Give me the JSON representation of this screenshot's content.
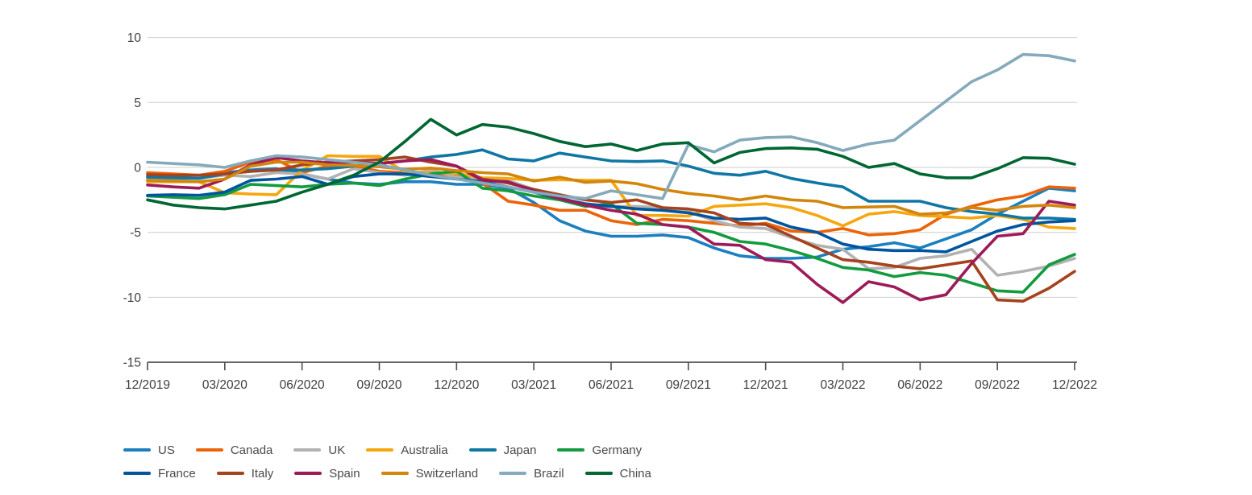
{
  "meta": {
    "background": "#ffffff",
    "grid_color": "#cfcfcf",
    "axis_color": "#4d4d4d",
    "text_color": "#3f3f3f"
  },
  "chart_data": {
    "type": "line",
    "title": "",
    "xlabel": "",
    "ylabel": "",
    "ylim": [
      -15,
      10
    ],
    "grid": "horizontal",
    "legend_position": "bottom-left",
    "y_tick_labels": [
      "10",
      "5",
      "0",
      "-5",
      "-10",
      "-15"
    ],
    "y_tick_values": [
      10,
      5,
      0,
      -5,
      -10,
      -15
    ],
    "x_tick_labels": [
      "12/2019",
      "03/2020",
      "06/2020",
      "09/2020",
      "12/2020",
      "03/2021",
      "06/2021",
      "09/2021",
      "12/2021",
      "03/2022",
      "06/2022",
      "09/2022",
      "12/2022"
    ],
    "x_months": [
      "12/2019",
      "01/2020",
      "02/2020",
      "03/2020",
      "04/2020",
      "05/2020",
      "06/2020",
      "07/2020",
      "08/2020",
      "09/2020",
      "10/2020",
      "11/2020",
      "12/2020",
      "01/2021",
      "02/2021",
      "03/2021",
      "04/2021",
      "05/2021",
      "06/2021",
      "07/2021",
      "08/2021",
      "09/2021",
      "10/2021",
      "11/2021",
      "12/2021",
      "01/2022",
      "02/2022",
      "03/2022",
      "04/2022",
      "05/2022",
      "06/2022",
      "07/2022",
      "08/2022",
      "09/2022",
      "10/2022",
      "11/2022",
      "12/2022"
    ],
    "series": [
      {
        "name": "US",
        "color": "#1b7fc0",
        "values": [
          -0.7,
          -0.7,
          -0.8,
          -0.4,
          -0.2,
          -0.1,
          -0.5,
          -0.9,
          -1.2,
          -1.3,
          -1.1,
          -1.1,
          -1.3,
          -1.3,
          -1.6,
          -2.7,
          -4.1,
          -4.9,
          -5.3,
          -5.3,
          -5.2,
          -5.4,
          -6.2,
          -6.8,
          -7.0,
          -7.0,
          -6.9,
          -6.3,
          -6.1,
          -5.8,
          -6.2,
          -5.5,
          -4.8,
          -3.6,
          -2.6,
          -1.6,
          -1.8
        ]
      },
      {
        "name": "Canada",
        "color": "#ec6408",
        "values": [
          -0.4,
          -0.5,
          -0.6,
          -0.3,
          0.4,
          0.6,
          -0.4,
          0.1,
          0.1,
          -0.3,
          -0.4,
          -0.7,
          -0.5,
          -1.2,
          -2.6,
          -2.9,
          -3.3,
          -3.3,
          -4.1,
          -4.4,
          -4.0,
          -4.1,
          -4.3,
          -4.5,
          -4.3,
          -4.9,
          -5.0,
          -4.7,
          -5.2,
          -5.1,
          -4.8,
          -3.6,
          -3.0,
          -2.5,
          -2.2,
          -1.5,
          -1.6
        ]
      },
      {
        "name": "UK",
        "color": "#b2b2b2",
        "values": [
          -0.85,
          -0.9,
          -0.8,
          -0.6,
          -0.7,
          -0.4,
          -0.5,
          -0.9,
          -0.1,
          -0.4,
          -0.6,
          -0.2,
          -0.75,
          -0.85,
          -1.0,
          -1.7,
          -2.3,
          -2.9,
          -3.0,
          -3.0,
          -3.1,
          -3.4,
          -4.1,
          -4.6,
          -4.7,
          -5.4,
          -6.0,
          -6.3,
          -7.8,
          -7.7,
          -7.0,
          -6.8,
          -6.3,
          -8.3,
          -8.0,
          -7.6,
          -7.0
        ]
      },
      {
        "name": "Australia",
        "color": "#f5a70f",
        "values": [
          -1.1,
          -1.1,
          -1.1,
          -1.95,
          -2.05,
          -2.1,
          -0.2,
          0.9,
          0.85,
          0.85,
          -0.35,
          -0.4,
          -0.45,
          -0.8,
          -0.85,
          -1.0,
          -0.95,
          -1.0,
          -1.0,
          -3.7,
          -3.7,
          -3.75,
          -3.0,
          -2.9,
          -2.8,
          -3.1,
          -3.7,
          -4.5,
          -3.6,
          -3.4,
          -3.7,
          -3.8,
          -3.9,
          -3.7,
          -4.0,
          -4.6,
          -4.7
        ]
      },
      {
        "name": "Japan",
        "color": "#1077a5",
        "values": [
          -0.75,
          -0.8,
          -0.85,
          -0.5,
          -0.3,
          -0.2,
          -0.2,
          -0.1,
          0.1,
          0.3,
          0.5,
          0.8,
          1.0,
          1.35,
          0.65,
          0.5,
          1.1,
          0.8,
          0.5,
          0.45,
          0.5,
          0.1,
          -0.45,
          -0.6,
          -0.3,
          -0.85,
          -1.2,
          -1.5,
          -2.6,
          -2.6,
          -2.6,
          -3.1,
          -3.4,
          -3.6,
          -3.9,
          -3.9,
          -4.0
        ]
      },
      {
        "name": "Germany",
        "color": "#149b3f",
        "values": [
          -2.2,
          -2.3,
          -2.4,
          -2.1,
          -1.3,
          -1.4,
          -1.5,
          -1.3,
          -1.2,
          -1.4,
          -0.9,
          -0.5,
          -0.3,
          -1.6,
          -1.8,
          -2.2,
          -2.5,
          -3.0,
          -2.8,
          -4.3,
          -4.4,
          -4.6,
          -5.0,
          -5.7,
          -5.9,
          -6.4,
          -7.0,
          -7.7,
          -7.9,
          -8.4,
          -8.1,
          -8.3,
          -8.9,
          -9.5,
          -9.6,
          -7.5,
          -6.7
        ]
      },
      {
        "name": "France",
        "color": "#00559e",
        "values": [
          -2.15,
          -2.1,
          -2.15,
          -1.9,
          -1.0,
          -0.9,
          -0.7,
          -1.3,
          -0.7,
          -0.5,
          -0.5,
          -0.7,
          -0.9,
          -1.1,
          -1.5,
          -1.9,
          -2.4,
          -2.8,
          -3.0,
          -3.2,
          -3.3,
          -3.5,
          -3.9,
          -4.0,
          -3.9,
          -4.6,
          -5.0,
          -5.9,
          -6.3,
          -6.4,
          -6.4,
          -6.5,
          -5.7,
          -4.9,
          -4.4,
          -4.2,
          -4.1
        ]
      },
      {
        "name": "Italy",
        "color": "#a4431d",
        "values": [
          -0.55,
          -0.6,
          -0.6,
          -0.5,
          -0.3,
          -0.2,
          0.2,
          0.4,
          0.5,
          0.6,
          0.8,
          0.4,
          0.1,
          -0.9,
          -1.2,
          -1.7,
          -2.1,
          -2.5,
          -2.7,
          -2.5,
          -3.1,
          -3.2,
          -3.5,
          -4.3,
          -4.4,
          -5.3,
          -6.2,
          -7.1,
          -7.3,
          -7.6,
          -7.8,
          -7.5,
          -7.2,
          -10.2,
          -10.3,
          -9.3,
          -8.0
        ]
      },
      {
        "name": "Spain",
        "color": "#9d1b58",
        "values": [
          -1.35,
          -1.5,
          -1.6,
          -0.9,
          0.2,
          0.75,
          0.5,
          0.35,
          0.4,
          0.3,
          0.5,
          0.6,
          0.1,
          -1.0,
          -1.1,
          -1.8,
          -2.4,
          -2.9,
          -3.3,
          -3.6,
          -4.4,
          -4.6,
          -5.9,
          -6.0,
          -7.1,
          -7.3,
          -9.0,
          -10.4,
          -8.8,
          -9.2,
          -10.2,
          -9.8,
          -7.4,
          -5.3,
          -5.1,
          -2.6,
          -2.9
        ]
      },
      {
        "name": "Switzerland",
        "color": "#d2860c",
        "values": [
          -1.0,
          -1.05,
          -1.1,
          -0.9,
          0.1,
          0.4,
          0.4,
          0.2,
          0.15,
          0.05,
          -0.15,
          -0.05,
          -0.25,
          -0.4,
          -0.5,
          -1.05,
          -0.75,
          -1.15,
          -1.05,
          -1.25,
          -1.7,
          -2.0,
          -2.2,
          -2.5,
          -2.2,
          -2.5,
          -2.6,
          -3.1,
          -3.05,
          -3.0,
          -3.6,
          -3.5,
          -3.1,
          -3.3,
          -3.0,
          -2.9,
          -3.1
        ]
      },
      {
        "name": "Brazil",
        "color": "#84aabc",
        "values": [
          0.4,
          0.3,
          0.2,
          0.0,
          0.5,
          0.9,
          0.8,
          0.6,
          0.4,
          0.2,
          -0.2,
          -0.6,
          -0.9,
          -1.2,
          -1.5,
          -1.9,
          -2.2,
          -2.4,
          -1.8,
          -2.1,
          -2.4,
          1.75,
          1.2,
          2.1,
          2.3,
          2.35,
          1.9,
          1.3,
          1.8,
          2.1,
          3.6,
          5.1,
          6.6,
          7.5,
          8.7,
          8.6,
          8.2
        ]
      },
      {
        "name": "China",
        "color": "#006633",
        "values": [
          -2.5,
          -2.9,
          -3.1,
          -3.2,
          -2.9,
          -2.6,
          -1.9,
          -1.3,
          -0.6,
          0.4,
          2.0,
          3.7,
          2.5,
          3.3,
          3.1,
          2.6,
          2.0,
          1.6,
          1.8,
          1.3,
          1.8,
          1.9,
          0.35,
          1.15,
          1.45,
          1.5,
          1.4,
          0.85,
          0.0,
          0.3,
          -0.5,
          -0.8,
          -0.8,
          -0.1,
          0.75,
          0.7,
          0.25
        ]
      }
    ],
    "legend_rows": [
      [
        "US",
        "Canada",
        "UK",
        "Australia",
        "Japan",
        "Germany"
      ],
      [
        "France",
        "Italy",
        "Spain",
        "Switzerland",
        "Brazil",
        "China"
      ]
    ]
  }
}
